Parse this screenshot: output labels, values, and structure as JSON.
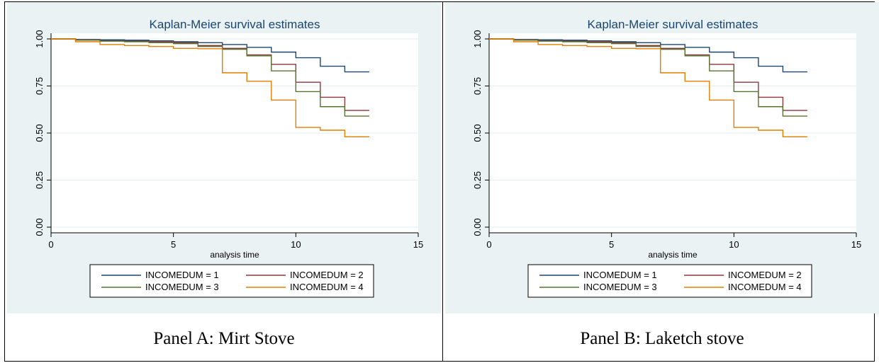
{
  "panels": [
    {
      "caption": "Panel A: Mirt Stove"
    },
    {
      "caption": "Panel B: Laketch stove"
    }
  ],
  "chart_data": [
    {
      "type": "line",
      "step": true,
      "title": "Kaplan-Meier survival estimates",
      "xlabel": "analysis time",
      "ylabel": "",
      "xlim": [
        0,
        15
      ],
      "ylim": [
        0,
        1
      ],
      "xticks": [
        "0",
        "5",
        "10",
        "15"
      ],
      "yticks": [
        "0.00",
        "0.25",
        "0.50",
        "0.75",
        "1.00"
      ],
      "grid": true,
      "legend_position": "bottom",
      "series": [
        {
          "name": "INCOMEDUM = 1",
          "color": "#1a476f",
          "x": [
            0,
            1,
            2,
            3,
            4,
            5,
            6,
            7,
            8,
            9,
            10,
            11,
            12,
            13
          ],
          "y": [
            1.0,
            0.997,
            0.995,
            0.993,
            0.99,
            0.985,
            0.98,
            0.97,
            0.955,
            0.93,
            0.9,
            0.855,
            0.825,
            0.825
          ]
        },
        {
          "name": "INCOMEDUM = 2",
          "color": "#90353b",
          "x": [
            0,
            1,
            2,
            3,
            4,
            5,
            6,
            7,
            8,
            9,
            10,
            11,
            12,
            13
          ],
          "y": [
            1.0,
            0.995,
            0.99,
            0.988,
            0.985,
            0.98,
            0.965,
            0.95,
            0.915,
            0.865,
            0.77,
            0.69,
            0.62,
            0.62
          ]
        },
        {
          "name": "INCOMEDUM = 3",
          "color": "#55752f",
          "x": [
            0,
            1,
            2,
            3,
            4,
            5,
            6,
            7,
            8,
            9,
            10,
            11,
            12,
            13
          ],
          "y": [
            1.0,
            0.993,
            0.988,
            0.985,
            0.98,
            0.975,
            0.96,
            0.945,
            0.91,
            0.83,
            0.72,
            0.64,
            0.59,
            0.59
          ]
        },
        {
          "name": "INCOMEDUM = 4",
          "color": "#e37e00",
          "x": [
            0,
            1,
            2,
            3,
            4,
            5,
            6,
            7,
            8,
            9,
            10,
            11,
            12,
            13
          ],
          "y": [
            1.0,
            0.985,
            0.97,
            0.965,
            0.96,
            0.95,
            0.948,
            0.82,
            0.775,
            0.675,
            0.53,
            0.515,
            0.48,
            0.48
          ]
        }
      ]
    },
    {
      "type": "line",
      "step": true,
      "title": "Kaplan-Meier survival estimates",
      "xlabel": "analysis time",
      "ylabel": "",
      "xlim": [
        0,
        15
      ],
      "ylim": [
        0,
        1
      ],
      "xticks": [
        "0",
        "5",
        "10",
        "15"
      ],
      "yticks": [
        "0.00",
        "0.25",
        "0.50",
        "0.75",
        "1.00"
      ],
      "grid": true,
      "legend_position": "bottom",
      "series": [
        {
          "name": "INCOMEDUM = 1",
          "color": "#1a476f",
          "x": [
            0,
            1,
            2,
            3,
            4,
            5,
            6,
            7,
            8,
            9,
            10,
            11,
            12,
            13
          ],
          "y": [
            1.0,
            0.997,
            0.995,
            0.993,
            0.99,
            0.985,
            0.98,
            0.97,
            0.955,
            0.93,
            0.9,
            0.855,
            0.825,
            0.825
          ]
        },
        {
          "name": "INCOMEDUM = 2",
          "color": "#90353b",
          "x": [
            0,
            1,
            2,
            3,
            4,
            5,
            6,
            7,
            8,
            9,
            10,
            11,
            12,
            13
          ],
          "y": [
            1.0,
            0.995,
            0.99,
            0.988,
            0.985,
            0.98,
            0.965,
            0.95,
            0.915,
            0.865,
            0.77,
            0.69,
            0.62,
            0.62
          ]
        },
        {
          "name": "INCOMEDUM = 3",
          "color": "#55752f",
          "x": [
            0,
            1,
            2,
            3,
            4,
            5,
            6,
            7,
            8,
            9,
            10,
            11,
            12,
            13
          ],
          "y": [
            1.0,
            0.993,
            0.988,
            0.985,
            0.98,
            0.975,
            0.96,
            0.945,
            0.91,
            0.83,
            0.72,
            0.64,
            0.59,
            0.59
          ]
        },
        {
          "name": "INCOMEDUM = 4",
          "color": "#e37e00",
          "x": [
            0,
            1,
            2,
            3,
            4,
            5,
            6,
            7,
            8,
            9,
            10,
            11,
            12,
            13
          ],
          "y": [
            1.0,
            0.985,
            0.97,
            0.965,
            0.96,
            0.95,
            0.948,
            0.82,
            0.775,
            0.675,
            0.53,
            0.515,
            0.48,
            0.48
          ]
        }
      ]
    }
  ]
}
